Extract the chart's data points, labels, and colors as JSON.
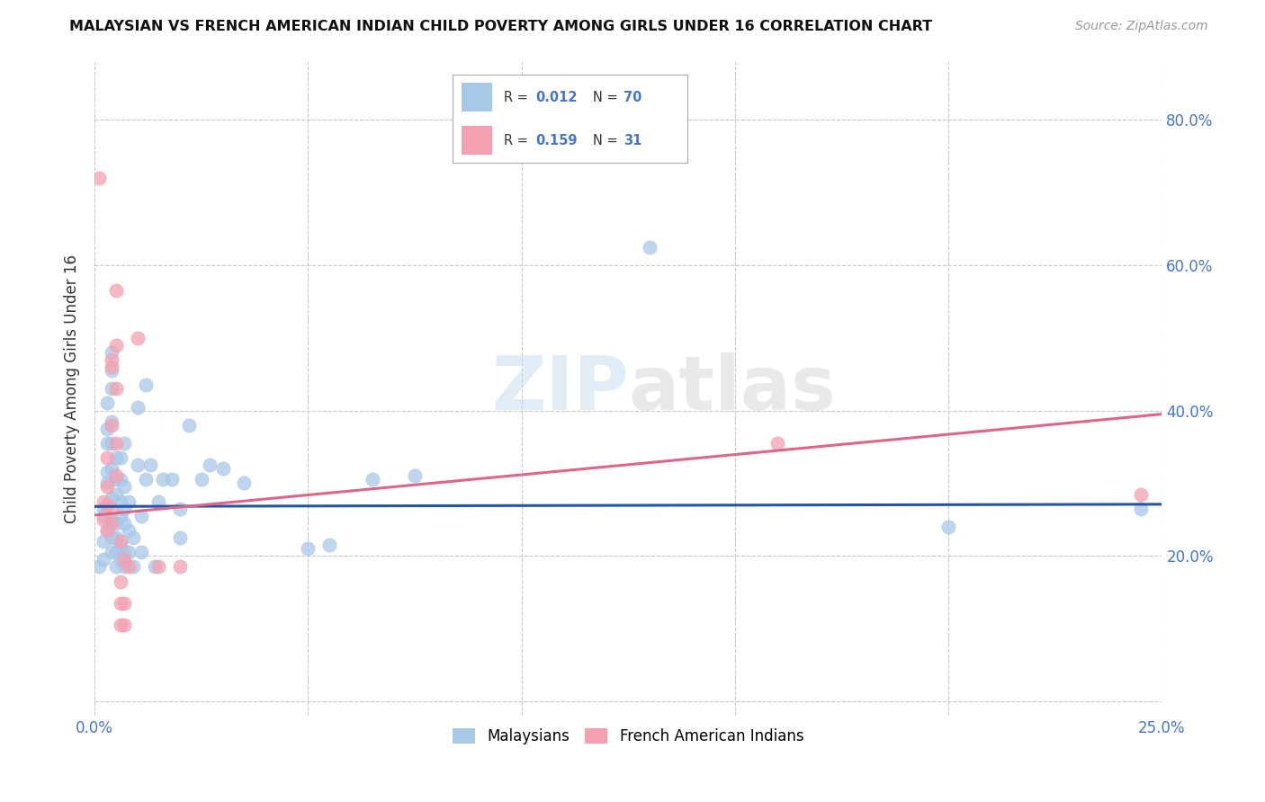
{
  "title": "MALAYSIAN VS FRENCH AMERICAN INDIAN CHILD POVERTY AMONG GIRLS UNDER 16 CORRELATION CHART",
  "source": "Source: ZipAtlas.com",
  "ylabel": "Child Poverty Among Girls Under 16",
  "xlim": [
    0.0,
    0.25
  ],
  "ylim": [
    -0.02,
    0.88
  ],
  "x_ticks": [
    0.0,
    0.05,
    0.1,
    0.15,
    0.2,
    0.25
  ],
  "x_tick_labels": [
    "0.0%",
    "",
    "",
    "",
    "",
    "25.0%"
  ],
  "y_ticks": [
    0.0,
    0.2,
    0.4,
    0.6,
    0.8
  ],
  "y_tick_labels_right": [
    "",
    "20.0%",
    "40.0%",
    "60.0%",
    "80.0%"
  ],
  "background_color": "#ffffff",
  "grid_color": "#c8c8c8",
  "watermark": "ZIPatlas",
  "blue_color": "#a8c8e8",
  "pink_color": "#f4a0b0",
  "line_blue": "#2255aa",
  "line_pink": "#dd6688",
  "blue_scatter": [
    [
      0.001,
      0.185
    ],
    [
      0.002,
      0.195
    ],
    [
      0.002,
      0.22
    ],
    [
      0.002,
      0.255
    ],
    [
      0.002,
      0.265
    ],
    [
      0.003,
      0.235
    ],
    [
      0.003,
      0.27
    ],
    [
      0.003,
      0.3
    ],
    [
      0.003,
      0.315
    ],
    [
      0.003,
      0.355
    ],
    [
      0.003,
      0.375
    ],
    [
      0.003,
      0.41
    ],
    [
      0.004,
      0.205
    ],
    [
      0.004,
      0.225
    ],
    [
      0.004,
      0.25
    ],
    [
      0.004,
      0.28
    ],
    [
      0.004,
      0.32
    ],
    [
      0.004,
      0.355
    ],
    [
      0.004,
      0.385
    ],
    [
      0.004,
      0.43
    ],
    [
      0.004,
      0.455
    ],
    [
      0.004,
      0.48
    ],
    [
      0.005,
      0.185
    ],
    [
      0.005,
      0.205
    ],
    [
      0.005,
      0.225
    ],
    [
      0.005,
      0.245
    ],
    [
      0.005,
      0.285
    ],
    [
      0.005,
      0.305
    ],
    [
      0.005,
      0.335
    ],
    [
      0.006,
      0.195
    ],
    [
      0.006,
      0.215
    ],
    [
      0.006,
      0.255
    ],
    [
      0.006,
      0.275
    ],
    [
      0.006,
      0.305
    ],
    [
      0.006,
      0.335
    ],
    [
      0.007,
      0.185
    ],
    [
      0.007,
      0.205
    ],
    [
      0.007,
      0.245
    ],
    [
      0.007,
      0.265
    ],
    [
      0.007,
      0.295
    ],
    [
      0.007,
      0.355
    ],
    [
      0.008,
      0.205
    ],
    [
      0.008,
      0.235
    ],
    [
      0.008,
      0.275
    ],
    [
      0.009,
      0.185
    ],
    [
      0.009,
      0.225
    ],
    [
      0.01,
      0.325
    ],
    [
      0.01,
      0.405
    ],
    [
      0.011,
      0.205
    ],
    [
      0.011,
      0.255
    ],
    [
      0.012,
      0.305
    ],
    [
      0.012,
      0.435
    ],
    [
      0.013,
      0.325
    ],
    [
      0.014,
      0.185
    ],
    [
      0.015,
      0.275
    ],
    [
      0.016,
      0.305
    ],
    [
      0.018,
      0.305
    ],
    [
      0.02,
      0.225
    ],
    [
      0.02,
      0.265
    ],
    [
      0.022,
      0.38
    ],
    [
      0.025,
      0.305
    ],
    [
      0.027,
      0.325
    ],
    [
      0.03,
      0.32
    ],
    [
      0.035,
      0.3
    ],
    [
      0.05,
      0.21
    ],
    [
      0.055,
      0.215
    ],
    [
      0.065,
      0.305
    ],
    [
      0.075,
      0.31
    ],
    [
      0.13,
      0.625
    ],
    [
      0.2,
      0.24
    ],
    [
      0.245,
      0.265
    ]
  ],
  "pink_scatter": [
    [
      0.001,
      0.72
    ],
    [
      0.002,
      0.25
    ],
    [
      0.002,
      0.275
    ],
    [
      0.003,
      0.235
    ],
    [
      0.003,
      0.27
    ],
    [
      0.003,
      0.295
    ],
    [
      0.003,
      0.335
    ],
    [
      0.004,
      0.38
    ],
    [
      0.004,
      0.245
    ],
    [
      0.004,
      0.265
    ],
    [
      0.004,
      0.46
    ],
    [
      0.004,
      0.47
    ],
    [
      0.005,
      0.43
    ],
    [
      0.005,
      0.49
    ],
    [
      0.005,
      0.565
    ],
    [
      0.005,
      0.31
    ],
    [
      0.005,
      0.355
    ],
    [
      0.006,
      0.105
    ],
    [
      0.006,
      0.135
    ],
    [
      0.006,
      0.165
    ],
    [
      0.006,
      0.22
    ],
    [
      0.007,
      0.105
    ],
    [
      0.007,
      0.135
    ],
    [
      0.007,
      0.195
    ],
    [
      0.008,
      0.185
    ],
    [
      0.01,
      0.5
    ],
    [
      0.015,
      0.185
    ],
    [
      0.02,
      0.185
    ],
    [
      0.16,
      0.355
    ],
    [
      0.245,
      0.285
    ]
  ],
  "blue_line": [
    [
      0.0,
      0.268
    ],
    [
      0.25,
      0.271
    ]
  ],
  "pink_line": [
    [
      0.0,
      0.256
    ],
    [
      0.25,
      0.395
    ]
  ]
}
